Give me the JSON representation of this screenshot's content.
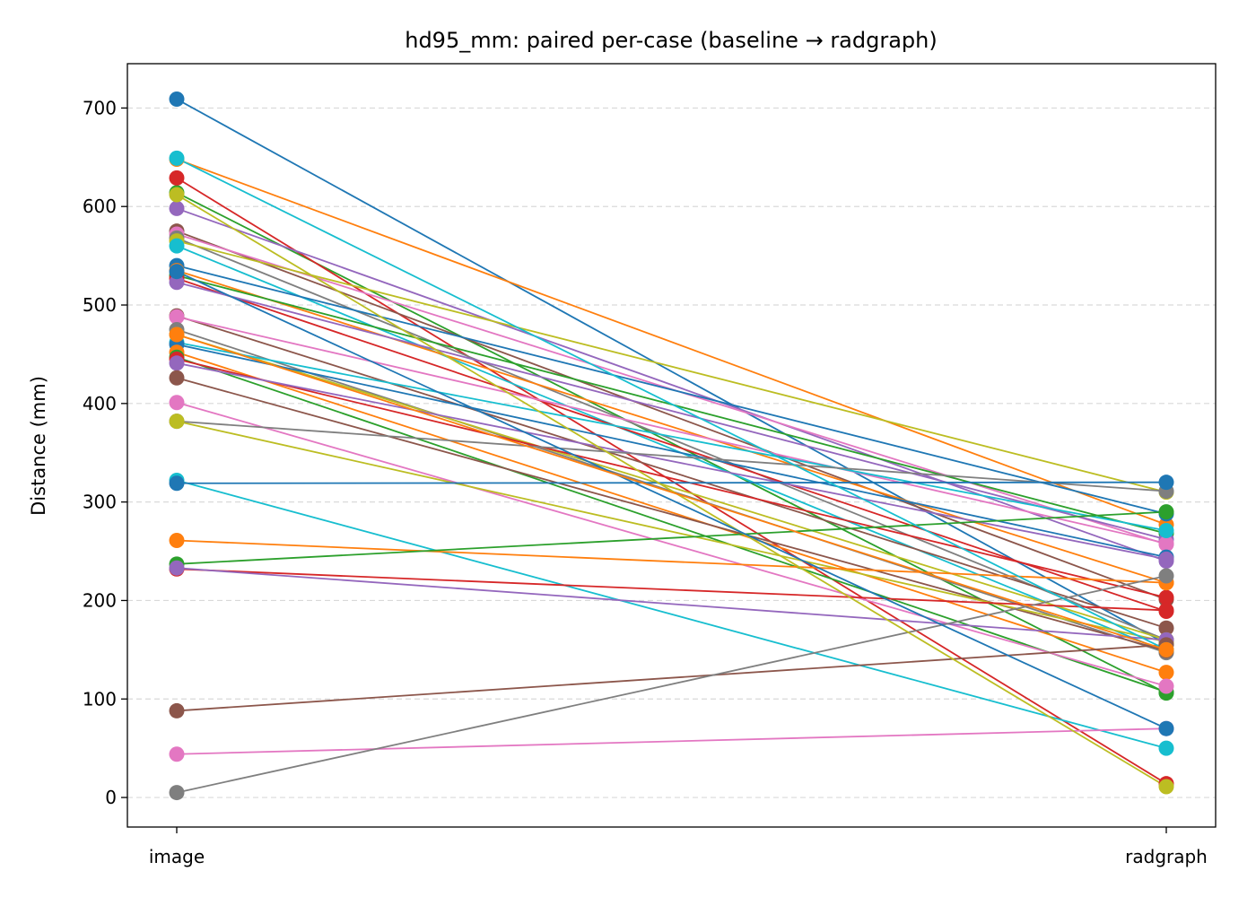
{
  "chart_data": {
    "type": "line",
    "title": "hd95_mm: paired per-case (baseline → radgraph)",
    "xlabel": "",
    "ylabel": "Distance (mm)",
    "categories": [
      "image",
      "radgraph"
    ],
    "ylim": [
      -30,
      745
    ],
    "yticks": [
      0,
      100,
      200,
      300,
      400,
      500,
      600,
      700
    ],
    "grid": "y-dashed",
    "legend": "none",
    "palette": [
      "#1f77b4",
      "#ff7f0e",
      "#2ca02c",
      "#d62728",
      "#9467bd",
      "#8c564b",
      "#e377c2",
      "#7f7f7f",
      "#bcbd22",
      "#17becf"
    ],
    "pairs": [
      [
        709,
        156
      ],
      [
        648,
        277
      ],
      [
        614,
        106
      ],
      [
        629,
        14
      ],
      [
        598,
        240
      ],
      [
        575,
        201
      ],
      [
        572,
        257
      ],
      [
        568,
        160
      ],
      [
        565,
        310
      ],
      [
        560,
        148
      ],
      [
        540,
        288
      ],
      [
        535,
        218
      ],
      [
        530,
        268
      ],
      [
        527,
        189
      ],
      [
        523,
        262
      ],
      [
        489,
        172
      ],
      [
        488,
        258
      ],
      [
        475,
        147
      ],
      [
        470,
        160
      ],
      [
        462,
        271
      ],
      [
        460,
        244
      ],
      [
        452,
        127
      ],
      [
        447,
        107
      ],
      [
        445,
        203
      ],
      [
        441,
        242
      ],
      [
        426,
        149
      ],
      [
        401,
        113
      ],
      [
        382,
        311
      ],
      [
        382,
        158
      ],
      [
        322,
        50
      ],
      [
        319,
        320
      ],
      [
        261,
        218
      ],
      [
        237,
        290
      ],
      [
        232,
        190
      ],
      [
        233,
        160
      ],
      [
        88,
        155
      ],
      [
        44,
        70
      ],
      [
        5,
        225
      ],
      [
        612,
        11
      ],
      [
        649,
        150
      ],
      [
        534,
        70
      ],
      [
        470,
        150
      ]
    ]
  }
}
